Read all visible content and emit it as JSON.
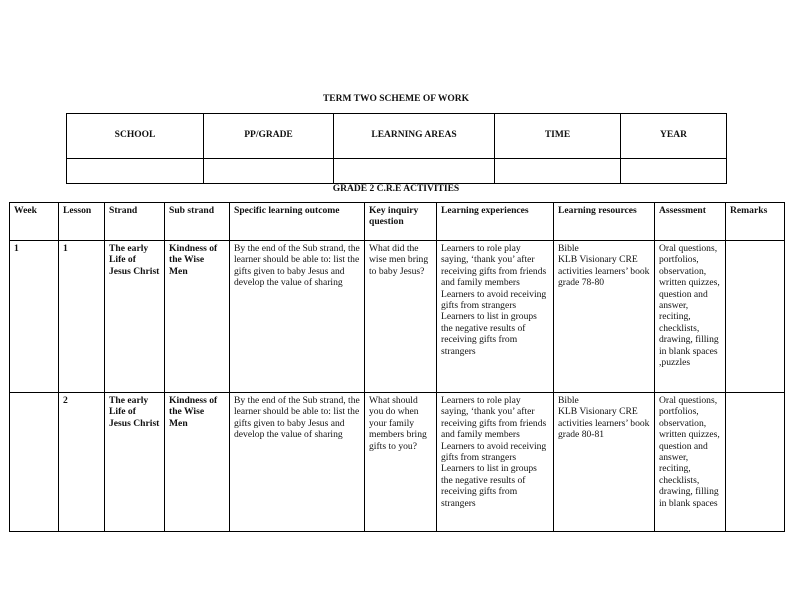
{
  "title": "TERM TWO SCHEME OF WORK",
  "info_table": {
    "headers": [
      "SCHOOL",
      "PP/GRADE",
      "LEARNING AREAS",
      "TIME",
      "YEAR"
    ],
    "values": [
      "",
      "",
      "",
      "",
      ""
    ]
  },
  "subtitle": "GRADE 2 C.R.E ACTIVITIES",
  "scheme_table": {
    "headers": [
      "Week",
      "Lesson",
      "Strand",
      "Sub strand",
      "Specific learning outcome",
      "Key inquiry question",
      "Learning experiences",
      "Learning resources",
      "Assessment",
      "Remarks"
    ],
    "rows": [
      {
        "week": "1",
        "lesson": "1",
        "strand": "The early Life of Jesus Christ",
        "sub_strand": "Kindness of the Wise Men",
        "outcome": "By the end of the Sub strand, the learner should be able to: list the gifts given to baby Jesus and develop the value of sharing",
        "question": "What did the wise men bring to baby Jesus?",
        "experiences": [
          "Learners to role play saying, ‘thank you’ after receiving gifts from friends and family members",
          "Learners to avoid receiving gifts from strangers",
          "Learners to list in groups the negative results of receiving gifts from strangers"
        ],
        "resources": [
          "Bible",
          "KLB Visionary CRE activities learners’ book grade 78-80"
        ],
        "assessment": "Oral questions, portfolios, observation, written quizzes, question and answer, reciting, checklists, drawing, filling in blank spaces ,puzzles",
        "remarks": ""
      },
      {
        "week": "",
        "lesson": "2",
        "strand": "The early Life of Jesus Christ",
        "sub_strand": "Kindness of the Wise Men",
        "outcome": "By the end of the Sub strand, the learner should be able to: list the gifts given to baby Jesus and develop the value of sharing",
        "question": "What should you do when your family members bring gifts to you?",
        "experiences": [
          "Learners to role play saying, ‘thank you’ after receiving gifts from friends and family members",
          "Learners to avoid receiving gifts from strangers",
          "Learners to list in groups the negative results of receiving gifts from strangers"
        ],
        "resources": [
          "Bible",
          "KLB Visionary CRE activities learners’ book grade 80-81"
        ],
        "assessment": "Oral questions, portfolios, observation, written quizzes, question and answer, reciting, checklists, drawing, filling in blank spaces",
        "remarks": ""
      }
    ]
  }
}
